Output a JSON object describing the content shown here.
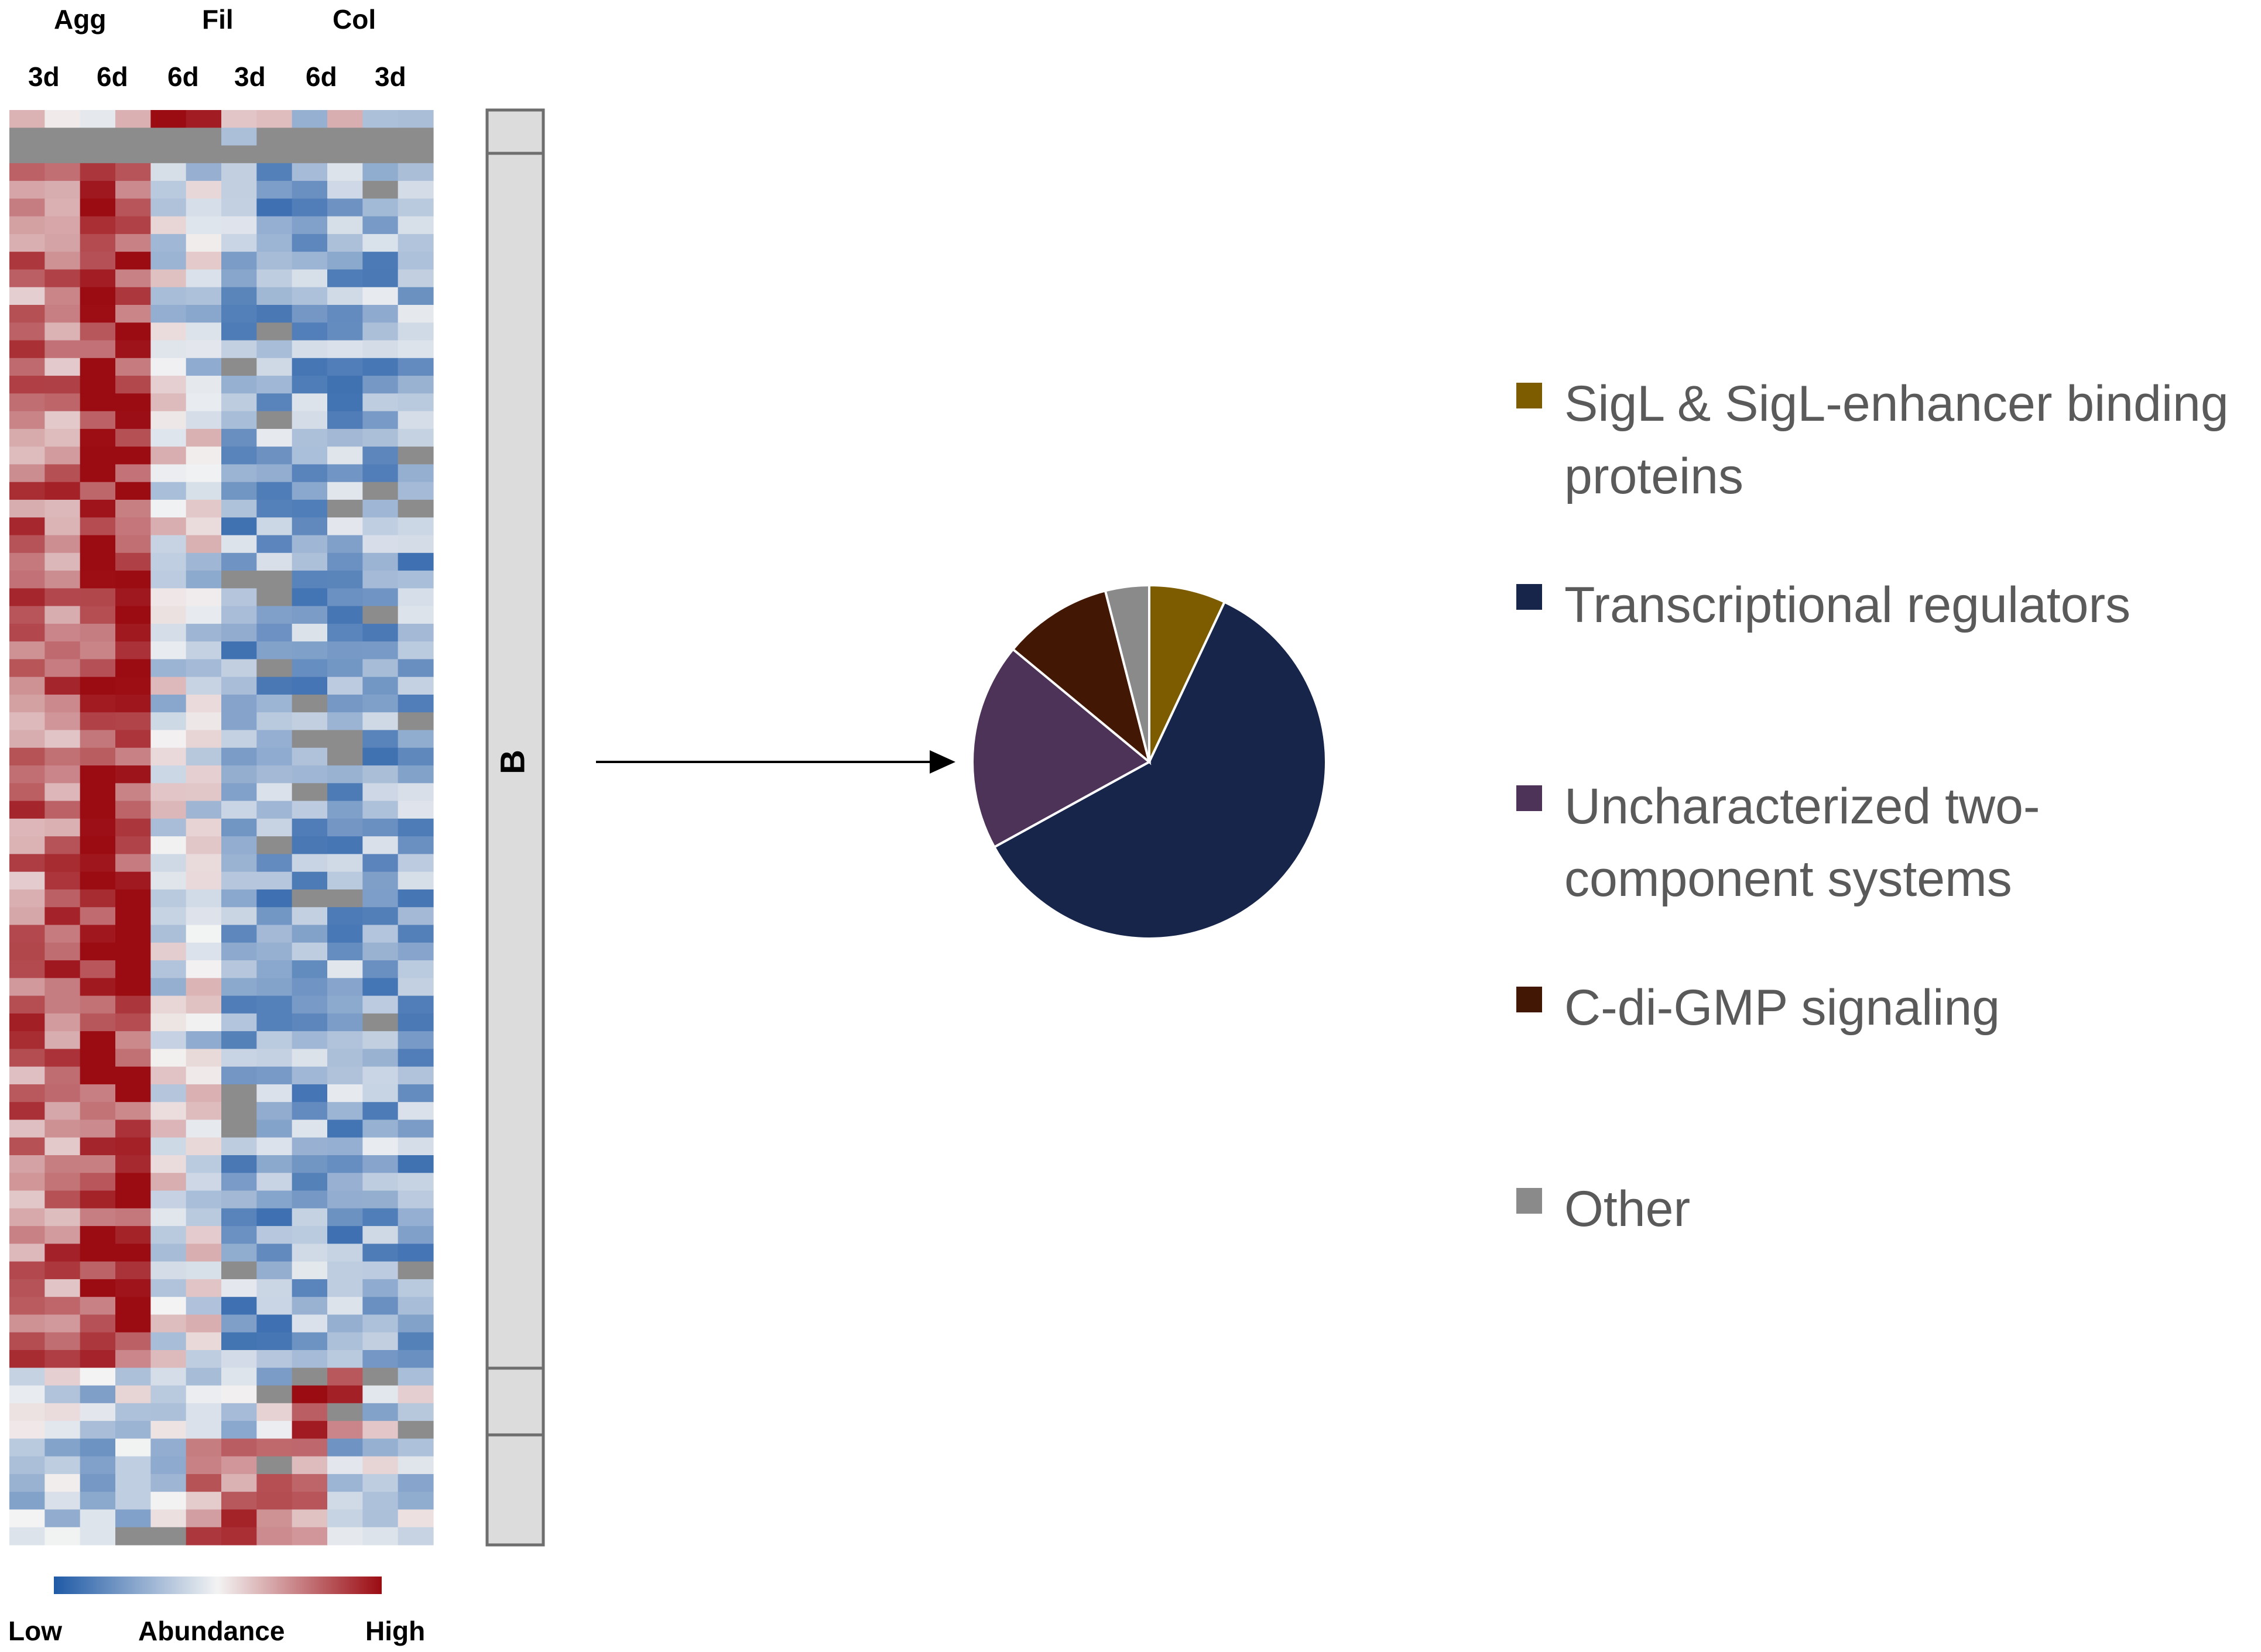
{
  "heatmap": {
    "groups": [
      "Agg",
      "Fil",
      "Col"
    ],
    "timepoints": [
      "3d",
      "6d",
      "6d",
      "3d",
      "6d",
      "3d"
    ],
    "cluster_label": "B",
    "scale": {
      "low": "Low",
      "mid": "Abundance",
      "high": "High"
    },
    "colors": {
      "low": "#1f5aa6",
      "mid": "#f3f3f3",
      "high": "#9b0b12",
      "missing": "#8c8c8c"
    }
  },
  "chart_data": {
    "type": "pie",
    "title": "",
    "slices": [
      {
        "label": "SigL & SigL-enhancer binding proteins",
        "value": 7,
        "color": "#7d5c00"
      },
      {
        "label": "Transcriptional regulators",
        "value": 60,
        "color": "#17254a"
      },
      {
        "label": "Uncharacterized two-component systems",
        "value": 19,
        "color": "#4e3358"
      },
      {
        "label": "C-di-GMP signaling",
        "value": 10,
        "color": "#421704"
      },
      {
        "label": "Other",
        "value": 4,
        "color": "#8a8a8a"
      }
    ],
    "legend": {
      "placement": "right",
      "lines": [
        [
          "SigL & SigL-enhancer binding",
          "proteins"
        ],
        [
          "Transcriptional regulators"
        ],
        [
          "Uncharacterized two-",
          "component systems"
        ],
        [
          "C-di-GMP signaling"
        ],
        [
          "Other"
        ]
      ]
    }
  }
}
